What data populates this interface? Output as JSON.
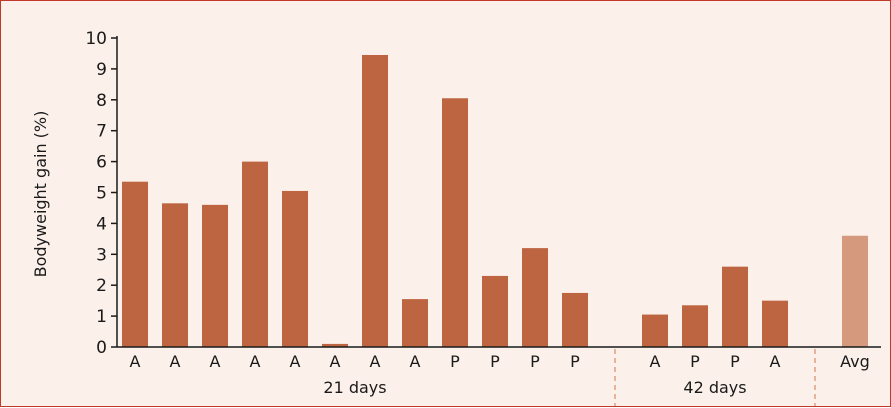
{
  "chart_data": {
    "type": "bar",
    "ylabel": "Bodyweight gain (%)",
    "ylim": [
      0,
      10
    ],
    "yticks": [
      "0",
      "1",
      "2",
      "3",
      "4",
      "5",
      "6",
      "7",
      "8",
      "9",
      "10"
    ],
    "grid": false,
    "categories": [
      "A",
      "A",
      "A",
      "A",
      "A",
      "A",
      "A",
      "A",
      "P",
      "P",
      "P",
      "P",
      "A",
      "P",
      "P",
      "A",
      "Avg"
    ],
    "values": [
      5.35,
      4.65,
      4.6,
      6.0,
      5.05,
      0.1,
      9.45,
      1.55,
      8.05,
      2.3,
      3.2,
      1.75,
      1.05,
      1.35,
      2.6,
      1.5,
      3.6
    ],
    "groups": [
      {
        "label": "21 days",
        "count": 12
      },
      {
        "label": "42 days",
        "count": 4
      },
      {
        "label": "",
        "count": 1
      }
    ],
    "colors": {
      "bar": "#bd6441",
      "average_bar": "#d59a7d",
      "background": "#fcf0ea",
      "border": "#c0392b",
      "separator": "#e0a080"
    }
  }
}
